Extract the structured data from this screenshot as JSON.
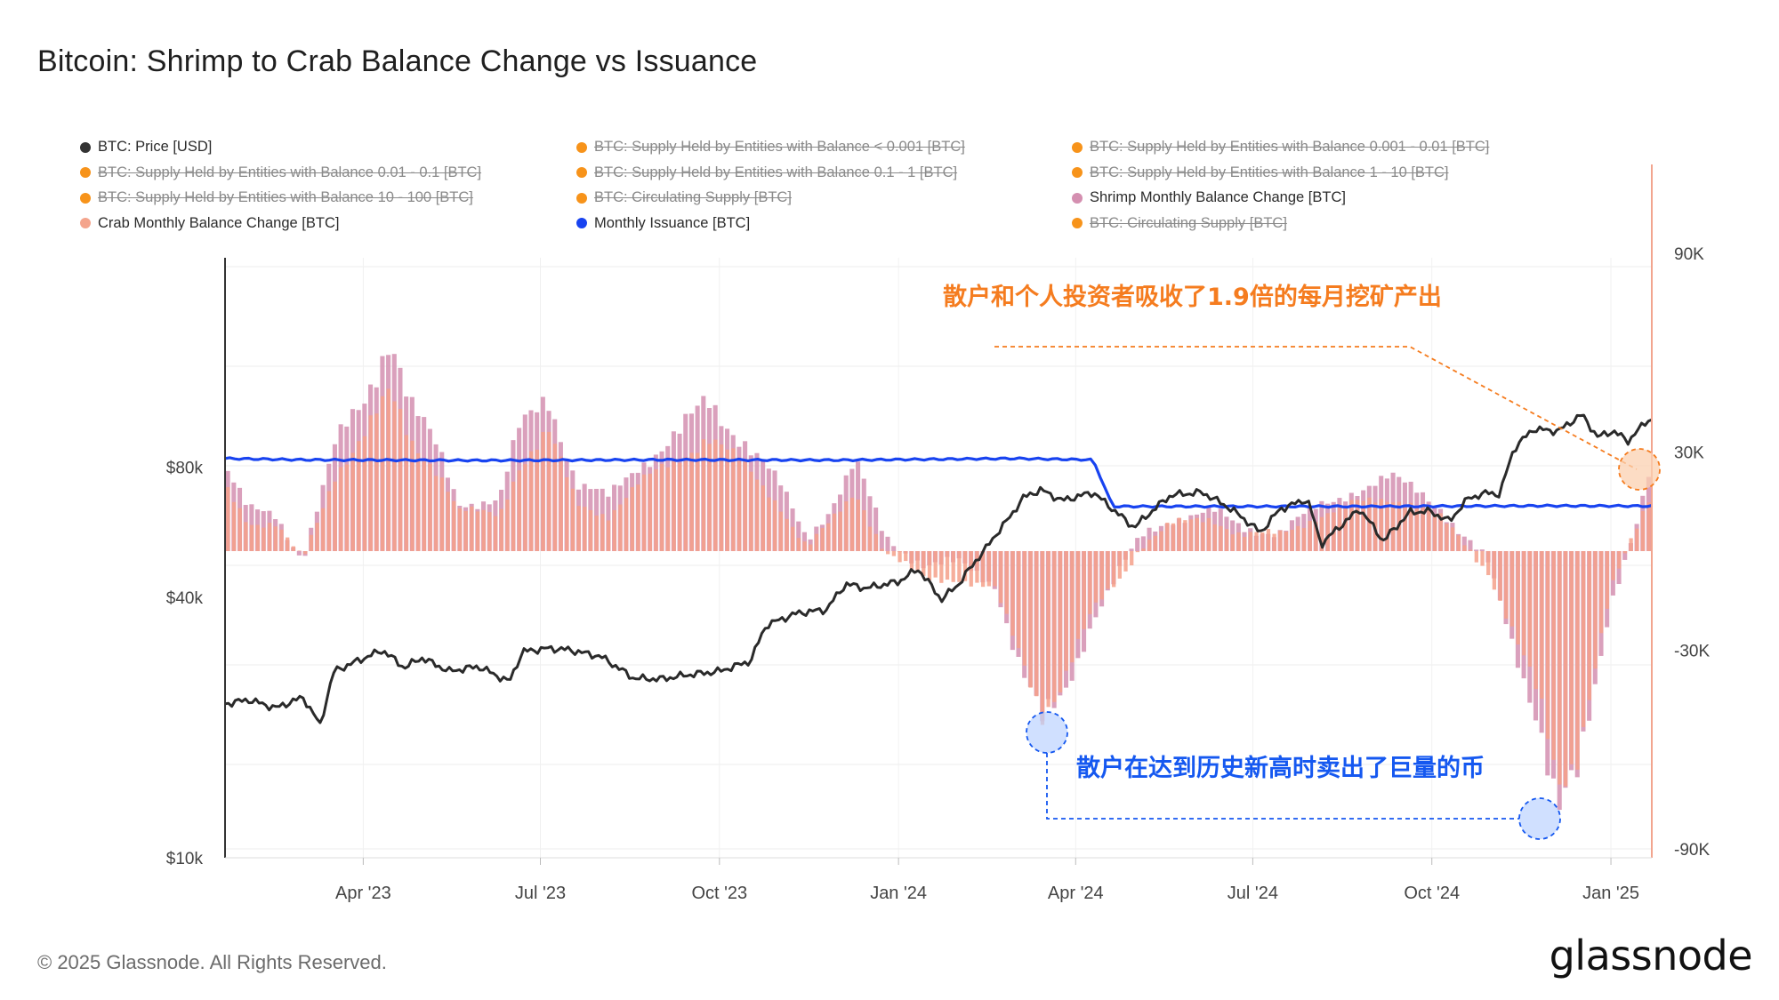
{
  "header": {
    "title": "Bitcoin: Shrimp to Crab Balance Change vs Issuance"
  },
  "legend": [
    {
      "label": "BTC: Price [USD]",
      "color": "#333333",
      "active": true
    },
    {
      "label": "BTC: Supply Held by Entities with Balance < 0.001 [BTC]",
      "color": "#f7931a",
      "active": false
    },
    {
      "label": "BTC: Supply Held by Entities with Balance 0.001 - 0.01 [BTC]",
      "color": "#f7931a",
      "active": false
    },
    {
      "label": "BTC: Supply Held by Entities with Balance 0.01 - 0.1 [BTC]",
      "color": "#f7931a",
      "active": false
    },
    {
      "label": "BTC: Supply Held by Entities with Balance 0.1 - 1 [BTC]",
      "color": "#f7931a",
      "active": false
    },
    {
      "label": "BTC: Supply Held by Entities with Balance 1 - 10 [BTC]",
      "color": "#f7931a",
      "active": false
    },
    {
      "label": "BTC: Supply Held by Entities with Balance 10 - 100 [BTC]",
      "color": "#f7931a",
      "active": false
    },
    {
      "label": "BTC: Circulating Supply [BTC]",
      "color": "#f7931a",
      "active": false
    },
    {
      "label": "Shrimp Monthly Balance Change [BTC]",
      "color": "#d48fb0",
      "active": true
    },
    {
      "label": "Crab Monthly Balance Change [BTC]",
      "color": "#f4a48c",
      "active": true
    },
    {
      "label": "Monthly Issuance [BTC]",
      "color": "#1843f0",
      "active": true
    },
    {
      "label": "BTC: Circulating Supply [BTC]",
      "color": "#f7931a",
      "active": false
    }
  ],
  "annotations": {
    "orange": "散户和个人投资者吸收了1.9倍的每月挖矿产出",
    "blue": "散户在达到历史新高时卖出了巨量的币",
    "orange_color": "#f57c1f",
    "blue_color": "#1558f0"
  },
  "footer": {
    "copyright": "© 2025 Glassnode. All Rights Reserved.",
    "brand": "glassnode"
  },
  "chart_data": {
    "type": "bar+line",
    "x_range": [
      "2023-01-20",
      "2025-01-22"
    ],
    "x_ticks": [
      "Apr '23",
      "Jul '23",
      "Oct '23",
      "Jan '24",
      "Apr '24",
      "Jul '24",
      "Oct '24",
      "Jan '25"
    ],
    "x_tick_dates": [
      "2023-04-01",
      "2023-07-01",
      "2023-10-01",
      "2024-01-01",
      "2024-04-01",
      "2024-07-01",
      "2024-10-01",
      "2025-01-01"
    ],
    "left_axis": {
      "label": "",
      "scale": "log",
      "ticks": [
        "$10k",
        "$40k",
        "$80k"
      ],
      "tick_values": [
        10000,
        40000,
        80000
      ],
      "range": [
        10000,
        250000
      ]
    },
    "right_axis": {
      "label": "",
      "scale": "linear",
      "ticks": [
        "90K",
        "30K",
        "-30K",
        "-90K"
      ],
      "tick_values": [
        90000,
        30000,
        -30000,
        -90000
      ],
      "range": [
        -90000,
        90000
      ]
    },
    "price": {
      "name": "BTC: Price [USD]",
      "dates": [
        "2023-01-20",
        "2023-02-01",
        "2023-02-15",
        "2023-03-01",
        "2023-03-10",
        "2023-03-17",
        "2023-03-25",
        "2023-04-11",
        "2023-04-22",
        "2023-05-01",
        "2023-05-15",
        "2023-05-30",
        "2023-06-15",
        "2023-06-22",
        "2023-07-05",
        "2023-07-15",
        "2023-08-01",
        "2023-08-18",
        "2023-09-01",
        "2023-09-15",
        "2023-10-01",
        "2023-10-17",
        "2023-10-25",
        "2023-11-10",
        "2023-11-25",
        "2023-12-05",
        "2023-12-15",
        "2024-01-01",
        "2024-01-11",
        "2024-01-23",
        "2024-02-01",
        "2024-02-15",
        "2024-02-28",
        "2024-03-05",
        "2024-03-14",
        "2024-03-25",
        "2024-04-10",
        "2024-04-20",
        "2024-05-01",
        "2024-05-20",
        "2024-06-05",
        "2024-06-20",
        "2024-07-05",
        "2024-07-15",
        "2024-07-29",
        "2024-08-05",
        "2024-08-25",
        "2024-09-06",
        "2024-09-20",
        "2024-09-30",
        "2024-10-10",
        "2024-10-20",
        "2024-10-31",
        "2024-11-05",
        "2024-11-12",
        "2024-11-22",
        "2024-12-05",
        "2024-12-17",
        "2024-12-25",
        "2025-01-02",
        "2025-01-10",
        "2025-01-20"
      ],
      "values": [
        22700,
        23200,
        22200,
        23500,
        20200,
        27000,
        28000,
        30200,
        27500,
        29000,
        27000,
        27700,
        25500,
        30000,
        30500,
        30300,
        29200,
        26000,
        25900,
        26500,
        27000,
        28500,
        34500,
        36800,
        37500,
        43000,
        42000,
        43500,
        46500,
        39500,
        43000,
        52000,
        62000,
        68000,
        71000,
        67000,
        70000,
        64000,
        58000,
        69000,
        70000,
        64000,
        56500,
        64000,
        67500,
        53000,
        64000,
        54000,
        63000,
        63300,
        60000,
        68000,
        70000,
        69000,
        88000,
        98000,
        97000,
        106000,
        94000,
        97000,
        92000,
        103000
      ]
    },
    "issuance": {
      "name": "Monthly Issuance [BTC]",
      "dates": [
        "2023-01-20",
        "2023-03-01",
        "2023-06-01",
        "2023-09-01",
        "2023-12-01",
        "2024-03-01",
        "2024-04-10",
        "2024-04-20",
        "2024-06-01",
        "2024-09-01",
        "2024-12-01",
        "2025-01-22"
      ],
      "values": [
        28000,
        27600,
        27400,
        27600,
        27500,
        28000,
        27600,
        13500,
        13500,
        13500,
        13700,
        13600
      ]
    },
    "shrimp": {
      "name": "Shrimp Monthly Balance Change [BTC]",
      "dates": [
        "2023-01-20",
        "2023-02-01",
        "2023-02-15",
        "2023-03-01",
        "2023-03-18",
        "2023-04-01",
        "2023-04-15",
        "2023-04-25",
        "2023-05-10",
        "2023-05-20",
        "2023-06-10",
        "2023-06-20",
        "2023-07-05",
        "2023-07-20",
        "2023-08-05",
        "2023-08-20",
        "2023-09-10",
        "2023-09-25",
        "2023-10-15",
        "2023-11-01",
        "2023-11-15",
        "2023-11-28",
        "2023-12-10",
        "2023-12-25",
        "2024-01-15",
        "2024-02-01",
        "2024-02-20",
        "2024-03-01",
        "2024-03-15",
        "2024-03-25",
        "2024-04-10",
        "2024-04-25",
        "2024-05-05",
        "2024-05-20",
        "2024-06-10",
        "2024-06-25",
        "2024-07-15",
        "2024-08-01",
        "2024-08-20",
        "2024-09-10",
        "2024-09-25",
        "2024-10-05",
        "2024-10-15",
        "2024-10-30",
        "2024-11-10",
        "2024-11-25",
        "2024-12-05",
        "2024-12-15",
        "2025-01-01",
        "2025-01-15",
        "2025-01-22"
      ],
      "values": [
        26000,
        12000,
        11000,
        -2000,
        32000,
        45000,
        67000,
        44000,
        30000,
        15000,
        15000,
        36000,
        48000,
        20000,
        16000,
        26000,
        35000,
        45000,
        33000,
        20000,
        4000,
        14000,
        27000,
        4000,
        -4000,
        -4000,
        -10000,
        -30000,
        -53000,
        -45000,
        -20000,
        -5000,
        4000,
        10000,
        12000,
        7000,
        6000,
        12000,
        18000,
        22000,
        18000,
        14000,
        6000,
        -4000,
        -25000,
        -50000,
        -80000,
        -70000,
        -15000,
        10000,
        26000
      ]
    },
    "crab": {
      "name": "Crab Monthly Balance Change [BTC]",
      "dates": [
        "2023-01-20",
        "2023-02-01",
        "2023-02-15",
        "2023-03-01",
        "2023-03-18",
        "2023-04-01",
        "2023-04-15",
        "2023-04-25",
        "2023-05-10",
        "2023-05-20",
        "2023-06-10",
        "2023-06-20",
        "2023-07-05",
        "2023-07-20",
        "2023-08-05",
        "2023-08-20",
        "2023-09-10",
        "2023-09-25",
        "2023-10-15",
        "2023-11-01",
        "2023-11-15",
        "2023-11-28",
        "2023-12-10",
        "2023-12-25",
        "2024-01-15",
        "2024-02-01",
        "2024-02-20",
        "2024-03-01",
        "2024-03-15",
        "2024-03-25",
        "2024-04-10",
        "2024-04-25",
        "2024-05-05",
        "2024-05-20",
        "2024-06-10",
        "2024-06-25",
        "2024-07-15",
        "2024-08-01",
        "2024-08-20",
        "2024-09-10",
        "2024-09-25",
        "2024-10-05",
        "2024-10-15",
        "2024-10-30",
        "2024-11-10",
        "2024-11-25",
        "2024-12-05",
        "2024-12-15",
        "2025-01-01",
        "2025-01-15",
        "2025-01-22"
      ],
      "values": [
        20000,
        9000,
        8000,
        -3000,
        24000,
        35000,
        47000,
        34000,
        24000,
        12000,
        11000,
        26000,
        36000,
        14000,
        11000,
        20000,
        28000,
        35000,
        25000,
        14000,
        1000,
        9000,
        18000,
        0,
        -9000,
        -8000,
        -12000,
        -28000,
        -48000,
        -40000,
        -18000,
        -7000,
        2000,
        8000,
        10000,
        5000,
        5000,
        10000,
        14000,
        16000,
        14000,
        10000,
        4000,
        -6000,
        -22000,
        -45000,
        -70000,
        -60000,
        -12000,
        8000,
        18000
      ]
    }
  }
}
